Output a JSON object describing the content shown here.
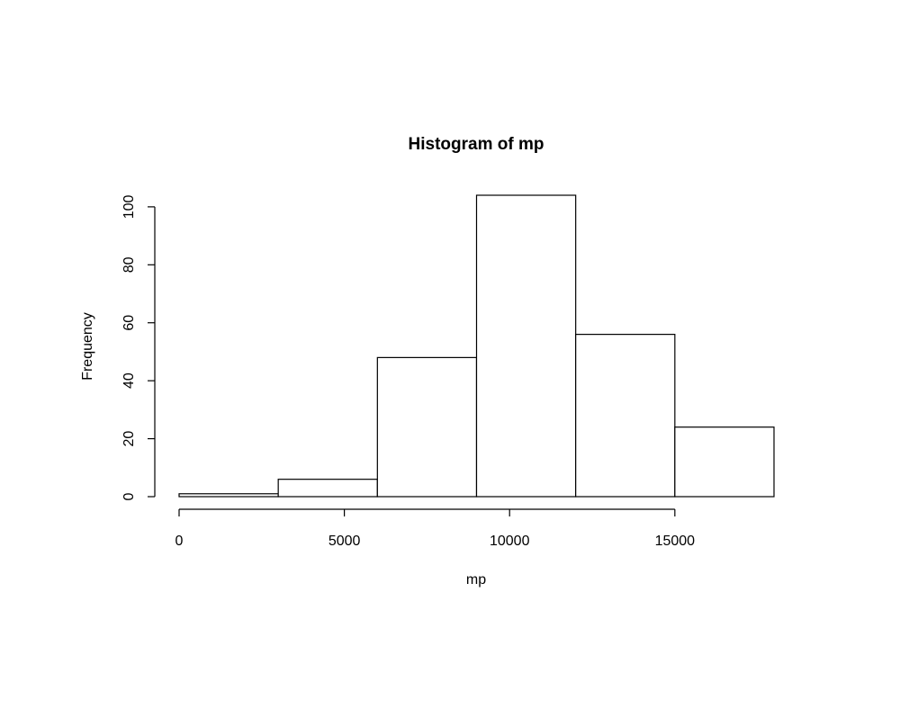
{
  "chart_data": {
    "type": "bar",
    "title": "Histogram of mp",
    "xlabel": "mp",
    "ylabel": "Frequency",
    "bins": [
      {
        "from": 0,
        "to": 3000,
        "count": 1
      },
      {
        "from": 3000,
        "to": 6000,
        "count": 6
      },
      {
        "from": 6000,
        "to": 9000,
        "count": 48
      },
      {
        "from": 9000,
        "to": 12000,
        "count": 104
      },
      {
        "from": 12000,
        "to": 15000,
        "count": 56
      },
      {
        "from": 15000,
        "to": 18000,
        "count": 24
      }
    ],
    "x_ticks": [
      0,
      5000,
      10000,
      15000
    ],
    "y_ticks": [
      0,
      20,
      40,
      60,
      80,
      100
    ],
    "xlim": [
      0,
      18000
    ],
    "ylim": [
      0,
      104
    ],
    "grid": false,
    "legend": "none"
  }
}
